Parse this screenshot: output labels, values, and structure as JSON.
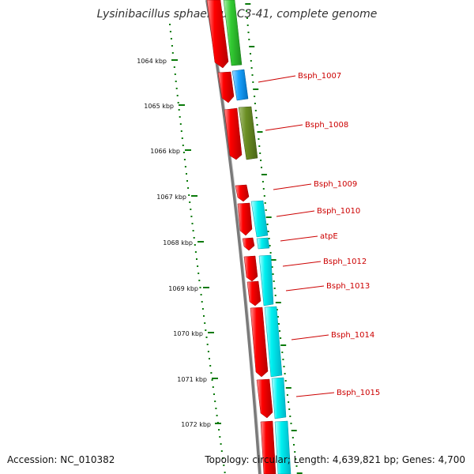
{
  "title": "Lysinibacillus sphaericus C3-41, complete genome",
  "accession": "Accession: NC_010382",
  "summary": "Topology: circular; Length: 4,639,821 bp; Genes: 4,700",
  "colors": {
    "backbone": "#808080",
    "tick": "#0a7a0a",
    "gene_label": "#cc0000",
    "leader": "#cc0000",
    "cds_forward": "#ff0000",
    "green": "#33cc33",
    "blue": "#1aa3ff",
    "olive": "#6b8e23",
    "cyan": "#00f0f0"
  },
  "scale_labels": [
    "1064 kbp",
    "1065 kbp",
    "1066 kbp",
    "1067 kbp",
    "1068 kbp",
    "1069 kbp",
    "1070 kbp",
    "1071 kbp",
    "1072 kbp"
  ],
  "gene_labels": [
    "Bsph_1007",
    "Bsph_1008",
    "Bsph_1009",
    "Bsph_1010",
    "atpE",
    "Bsph_1012",
    "Bsph_1013",
    "Bsph_1014",
    "Bsph_1015"
  ]
}
